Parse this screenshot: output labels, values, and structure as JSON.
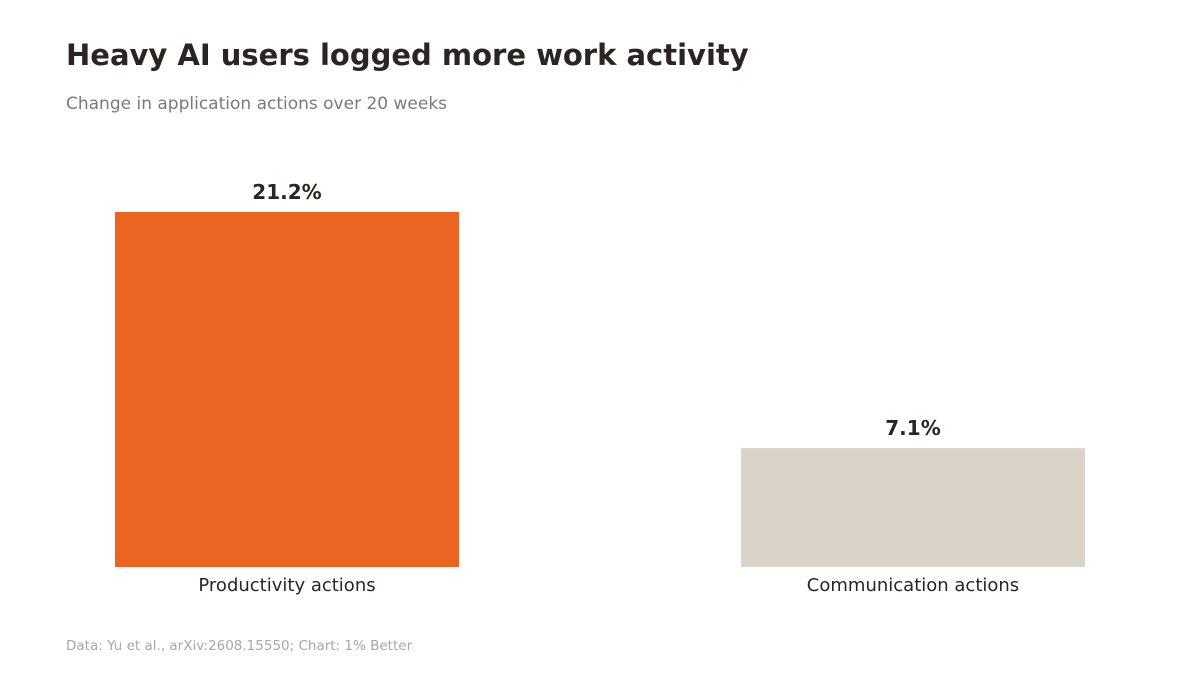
{
  "chart_data": {
    "type": "bar",
    "title": "Heavy AI users logged more work activity",
    "subtitle": "Change in application actions over 20 weeks",
    "categories": [
      "Productivity actions",
      "Communication actions"
    ],
    "values": [
      21.2,
      7.1
    ],
    "value_labels": [
      "21.2%",
      "7.1%"
    ],
    "colors": [
      "#EC6421",
      "#DAD3CA"
    ],
    "xlabel": "",
    "ylabel": "",
    "ylim": [
      0,
      21.2
    ],
    "grid": false,
    "legend": "none"
  },
  "footer": {
    "source": "Data: Yu et al., arXiv:2608.15550; Chart: 1% Better"
  }
}
